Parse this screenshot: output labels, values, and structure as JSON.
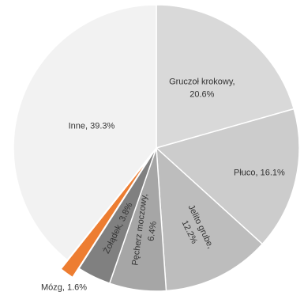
{
  "chart_data": {
    "type": "pie",
    "title": "",
    "categories": [
      "Gruczoł krokowy",
      "Płuco",
      "Jelito grube",
      "Pęcherz moczowy",
      "Żołądek",
      "Mózg",
      "Inne"
    ],
    "values": [
      20.6,
      16.1,
      12.2,
      6.4,
      3.8,
      1.6,
      39.3
    ],
    "unit": "%",
    "data_labels": [
      [
        "Gruczoł krokowy,",
        "20.6%"
      ],
      [
        "Płuco, 16.1%"
      ],
      [
        "Jelito grube,",
        "12.2%"
      ],
      [
        "Pęcherz moczowy,",
        "6.4%"
      ],
      [
        "Żołądek, 3.8%"
      ],
      [
        "Mózg, 1.6%"
      ],
      [
        "Inne, 39.3%"
      ]
    ],
    "colors": [
      "#d9d9d9",
      "#cccccc",
      "#bdbdbd",
      "#a6a6a6",
      "#808080",
      "#ed7d31",
      "#f2f2f2"
    ],
    "exploded": [
      "Mózg"
    ],
    "legend": "none"
  }
}
